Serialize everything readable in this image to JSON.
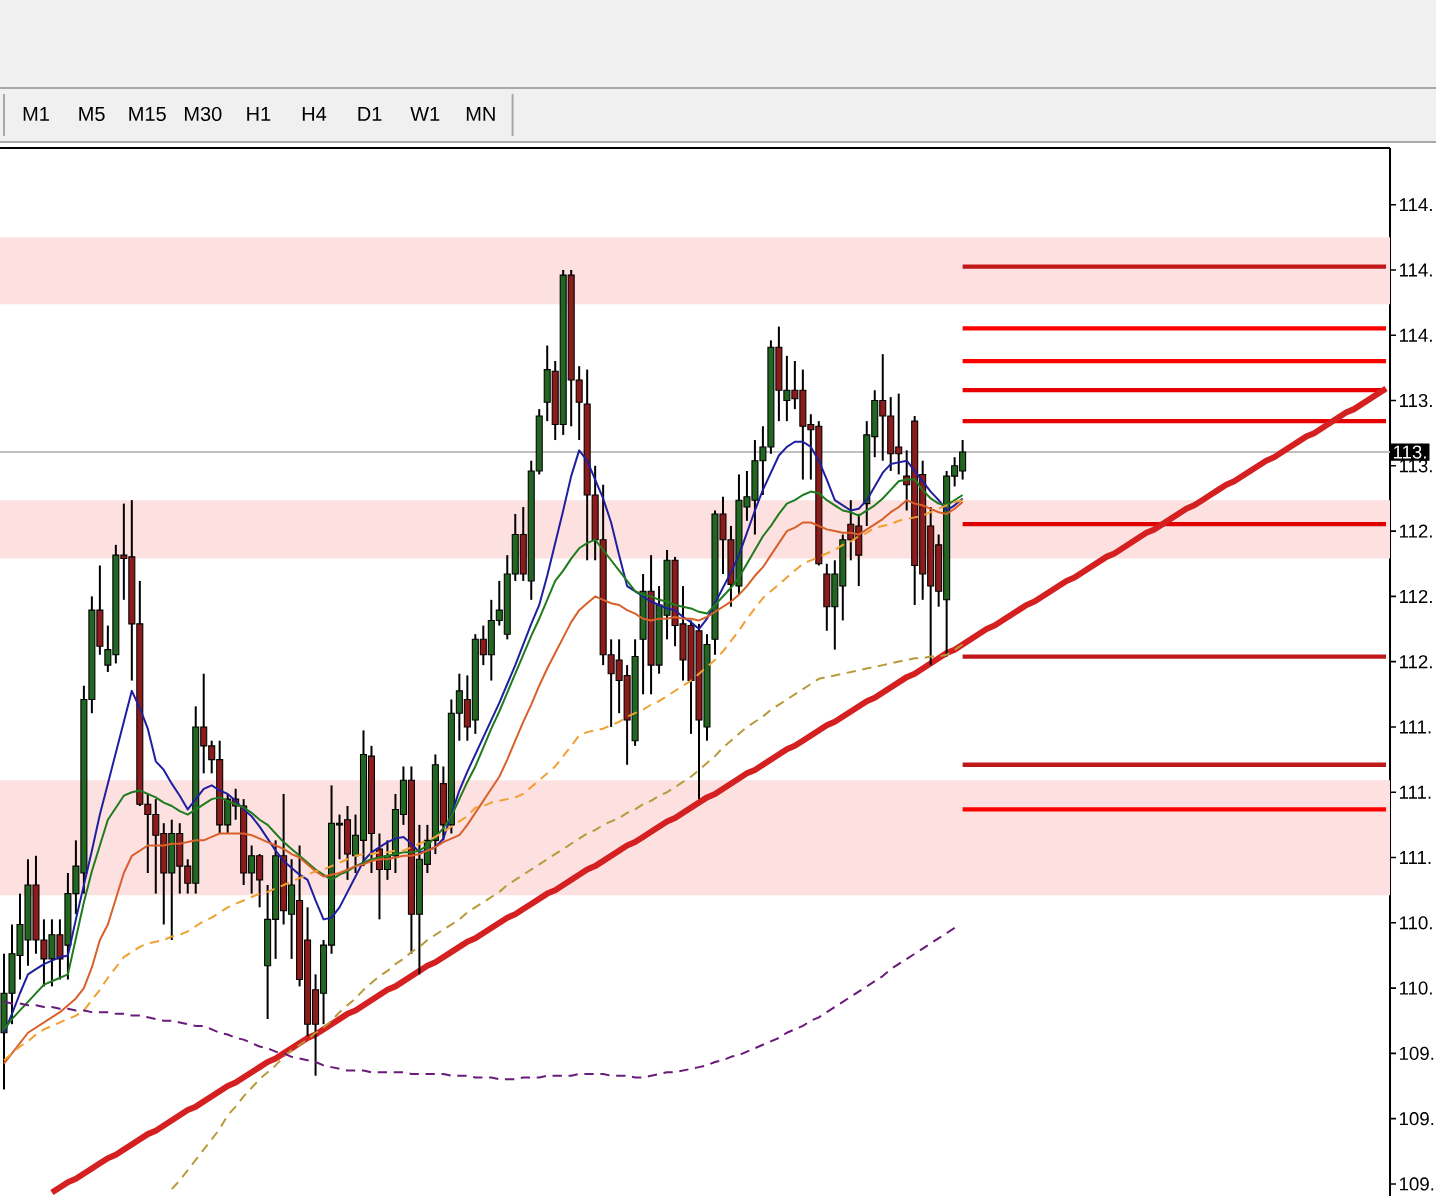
{
  "chart_data": {
    "type": "candlestick",
    "categories": [
      null,
      null,
      null,
      null,
      null,
      null,
      null,
      null,
      null,
      null,
      null,
      null,
      null,
      null,
      null,
      null,
      null,
      null,
      null,
      null,
      null,
      null,
      null,
      null,
      null,
      null,
      null,
      null,
      null,
      null,
      null,
      null,
      null,
      null,
      null,
      null,
      null,
      null,
      null,
      null,
      null,
      null,
      null,
      null,
      null,
      null,
      null,
      null,
      null,
      null,
      null,
      null,
      null,
      null,
      null,
      null,
      null,
      null,
      null,
      null,
      null,
      null,
      null,
      null,
      null,
      null,
      null,
      null,
      null,
      null,
      null,
      null,
      null,
      null,
      null,
      null,
      null,
      null,
      null,
      null,
      null,
      null,
      null,
      null,
      null,
      null,
      null,
      null,
      null,
      null,
      null,
      null,
      null,
      null,
      null,
      null,
      null,
      null,
      null,
      null,
      null,
      null,
      null,
      null,
      null,
      null,
      null,
      null,
      null,
      null,
      null,
      null,
      null,
      null,
      null,
      null,
      null,
      null,
      null,
      null,
      null,
      null,
      null,
      null,
      null,
      null,
      null,
      null,
      null,
      null,
      null,
      null,
      null,
      null,
      null,
      null,
      null,
      null,
      null,
      null,
      null,
      null,
      null,
      null,
      null,
      null,
      null,
      null,
      null,
      null,
      null,
      null,
      null,
      null,
      null,
      null,
      null,
      null,
      null,
      null,
      null,
      null,
      null,
      null,
      null,
      null,
      null,
      null,
      null,
      null,
      null,
      null,
      null,
      null
    ],
    "ohlc": [
      [
        109.53,
        109.99,
        109.2,
        109.76
      ],
      [
        109.76,
        110.16,
        109.58,
        109.99
      ],
      [
        109.98,
        110.34,
        109.84,
        110.16
      ],
      [
        110.07,
        110.54,
        109.92,
        110.39
      ],
      [
        110.39,
        110.56,
        109.99,
        110.07
      ],
      [
        110.07,
        110.19,
        109.8,
        109.96
      ],
      [
        109.96,
        110.19,
        109.8,
        110.1
      ],
      [
        110.1,
        110.19,
        109.84,
        109.96
      ],
      [
        110.04,
        110.46,
        109.84,
        110.34
      ],
      [
        110.34,
        110.65,
        110.22,
        110.5
      ],
      [
        110.46,
        111.55,
        110.34,
        111.47
      ],
      [
        111.47,
        112.07,
        111.39,
        111.99
      ],
      [
        111.99,
        112.25,
        111.73,
        111.78
      ],
      [
        111.67,
        111.9,
        111.63,
        111.76
      ],
      [
        111.73,
        112.37,
        111.68,
        112.31
      ],
      [
        112.31,
        112.61,
        112.05,
        112.29
      ],
      [
        112.3,
        112.63,
        111.58,
        111.91
      ],
      [
        111.91,
        112.16,
        110.85,
        110.86
      ],
      [
        110.86,
        110.92,
        110.46,
        110.8
      ],
      [
        110.8,
        110.89,
        110.34,
        110.68
      ],
      [
        110.69,
        110.75,
        110.16,
        110.46
      ],
      [
        110.46,
        110.77,
        110.07,
        110.69
      ],
      [
        110.69,
        110.75,
        110.34,
        110.5
      ],
      [
        110.5,
        110.54,
        110.34,
        110.4
      ],
      [
        110.4,
        111.43,
        110.34,
        111.31
      ],
      [
        111.31,
        111.62,
        111.04,
        111.2
      ],
      [
        111.2,
        111.23,
        111.04,
        111.12
      ],
      [
        111.12,
        111.23,
        110.69,
        110.74
      ],
      [
        110.74,
        110.92,
        110.69,
        110.89
      ],
      [
        110.89,
        110.95,
        110.77,
        110.85
      ],
      [
        110.85,
        110.89,
        110.39,
        110.46
      ],
      [
        110.46,
        110.62,
        110.34,
        110.56
      ],
      [
        110.56,
        110.57,
        110.26,
        110.42
      ],
      [
        109.92,
        110.39,
        109.61,
        110.19
      ],
      [
        110.19,
        110.65,
        109.96,
        110.56
      ],
      [
        110.56,
        110.92,
        110.16,
        110.24
      ],
      [
        110.22,
        110.54,
        109.96,
        110.39
      ],
      [
        110.3,
        110.62,
        109.8,
        109.84
      ],
      [
        110.07,
        110.26,
        109.51,
        109.58
      ],
      [
        109.78,
        109.87,
        109.28,
        109.58
      ],
      [
        109.76,
        110.07,
        109.58,
        110.04
      ],
      [
        110.04,
        110.97,
        109.99,
        110.75
      ],
      [
        110.74,
        110.8,
        110.54,
        110.75
      ],
      [
        110.77,
        110.85,
        110.42,
        110.57
      ],
      [
        110.56,
        110.8,
        110.46,
        110.68
      ],
      [
        110.65,
        111.29,
        110.5,
        111.15
      ],
      [
        111.14,
        111.2,
        110.46,
        110.69
      ],
      [
        110.6,
        110.69,
        110.19,
        110.48
      ],
      [
        110.48,
        110.65,
        110.42,
        110.56
      ],
      [
        110.56,
        110.92,
        110.46,
        110.83
      ],
      [
        110.8,
        111.08,
        110.74,
        111.0
      ],
      [
        111.0,
        111.08,
        109.99,
        110.22
      ],
      [
        110.22,
        110.74,
        109.87,
        110.54
      ],
      [
        110.51,
        110.74,
        110.46,
        110.65
      ],
      [
        110.65,
        111.15,
        110.57,
        111.09
      ],
      [
        110.98,
        111.08,
        110.65,
        110.74
      ],
      [
        110.74,
        111.47,
        110.69,
        111.39
      ],
      [
        111.39,
        111.62,
        111.23,
        111.52
      ],
      [
        111.47,
        111.61,
        111.23,
        111.31
      ],
      [
        111.35,
        111.85,
        111.27,
        111.82
      ],
      [
        111.82,
        111.9,
        111.67,
        111.73
      ],
      [
        111.73,
        112.05,
        111.58,
        111.93
      ],
      [
        111.93,
        112.16,
        111.9,
        111.99
      ],
      [
        111.85,
        112.31,
        111.82,
        112.2
      ],
      [
        112.2,
        112.55,
        112.16,
        112.43
      ],
      [
        112.43,
        112.59,
        112.16,
        112.2
      ],
      [
        112.16,
        112.86,
        112.05,
        112.8
      ],
      [
        112.8,
        113.16,
        112.78,
        113.12
      ],
      [
        113.2,
        113.53,
        113.09,
        113.39
      ],
      [
        113.38,
        113.44,
        112.98,
        113.07
      ],
      [
        113.07,
        113.97,
        113.01,
        113.94
      ],
      [
        113.94,
        113.97,
        113.06,
        113.33
      ],
      [
        113.33,
        113.41,
        112.98,
        113.2
      ],
      [
        113.19,
        113.39,
        112.28,
        112.66
      ],
      [
        112.66,
        112.83,
        112.28,
        112.4
      ],
      [
        112.4,
        112.72,
        111.67,
        111.73
      ],
      [
        111.73,
        111.82,
        111.31,
        111.62
      ],
      [
        111.7,
        111.82,
        111.39,
        111.58
      ],
      [
        111.61,
        111.67,
        111.09,
        111.35
      ],
      [
        111.23,
        111.82,
        111.2,
        111.72
      ],
      [
        111.82,
        112.2,
        111.5,
        112.1
      ],
      [
        112.1,
        112.31,
        111.5,
        111.67
      ],
      [
        111.67,
        112.13,
        111.62,
        112.02
      ],
      [
        111.96,
        112.34,
        111.82,
        112.28
      ],
      [
        112.28,
        112.3,
        111.78,
        111.9
      ],
      [
        111.91,
        112.13,
        111.58,
        111.7
      ],
      [
        111.9,
        111.93,
        111.27,
        111.58
      ],
      [
        111.87,
        111.91,
        110.89,
        111.35
      ],
      [
        111.31,
        111.85,
        111.23,
        111.79
      ],
      [
        111.82,
        112.57,
        111.73,
        112.55
      ],
      [
        112.55,
        112.65,
        112.2,
        112.4
      ],
      [
        112.4,
        112.48,
        112.01,
        112.14
      ],
      [
        112.13,
        112.78,
        112.08,
        112.63
      ],
      [
        112.59,
        112.8,
        112.51,
        112.65
      ],
      [
        112.63,
        112.98,
        112.43,
        112.86
      ],
      [
        112.86,
        113.06,
        112.66,
        112.94
      ],
      [
        112.94,
        113.56,
        112.9,
        113.52
      ],
      [
        113.52,
        113.64,
        113.09,
        113.27
      ],
      [
        113.21,
        113.47,
        113.09,
        113.27
      ],
      [
        113.27,
        113.44,
        113.16,
        113.22
      ],
      [
        113.27,
        113.39,
        112.75,
        113.06
      ],
      [
        113.07,
        113.13,
        112.75,
        113.04
      ],
      [
        113.06,
        113.09,
        112.25,
        112.26
      ],
      [
        112.2,
        112.26,
        111.87,
        112.01
      ],
      [
        112.01,
        112.28,
        111.76,
        112.2
      ],
      [
        112.13,
        112.43,
        111.93,
        112.4
      ],
      [
        112.49,
        112.63,
        112.28,
        112.4
      ],
      [
        112.48,
        112.55,
        112.13,
        112.31
      ],
      [
        112.61,
        113.09,
        112.48,
        113.01
      ],
      [
        113.0,
        113.27,
        112.88,
        113.21
      ],
      [
        113.21,
        113.48,
        112.86,
        113.12
      ],
      [
        113.12,
        113.23,
        112.8,
        112.9
      ],
      [
        112.94,
        113.25,
        112.78,
        112.9
      ],
      [
        112.77,
        112.92,
        112.57,
        112.72
      ],
      [
        113.09,
        113.12,
        112.02,
        112.25
      ],
      [
        112.78,
        112.86,
        112.05,
        112.2
      ],
      [
        112.48,
        112.59,
        111.67,
        112.13
      ],
      [
        112.37,
        112.43,
        112.01,
        112.1
      ],
      [
        112.05,
        112.8,
        111.72,
        112.77
      ],
      [
        112.77,
        112.88,
        112.71,
        112.83
      ],
      [
        112.8,
        112.98,
        112.75,
        112.91
      ],
      null,
      null,
      null,
      null,
      null,
      null,
      null,
      null,
      null,
      null,
      null,
      null,
      null,
      null,
      null,
      null,
      null,
      null,
      null,
      null,
      null,
      null,
      null,
      null,
      null,
      null,
      null,
      null,
      null,
      null,
      null,
      null,
      null,
      null,
      null,
      null,
      null,
      null,
      null,
      null,
      null,
      null,
      null,
      null,
      null,
      null,
      null,
      null,
      null,
      null,
      null,
      null,
      null
    ],
    "colors": [
      "#226622",
      "#226622",
      "#226622",
      "#226622",
      "#8c1c1c",
      "#8c1c1c",
      "#226622",
      "#8c1c1c",
      "#226622",
      "#226622",
      "#226622",
      "#226622",
      "#8c1c1c",
      "#226622",
      "#226622",
      "#8c1c1c",
      "#8c1c1c",
      "#8c1c1c",
      "#8c1c1c",
      "#8c1c1c",
      "#8c1c1c",
      "#226622",
      "#8c1c1c",
      "#8c1c1c",
      "#226622",
      "#8c1c1c",
      "#8c1c1c",
      "#8c1c1c",
      "#226622",
      "#8c1c1c",
      "#8c1c1c",
      "#226622",
      "#8c1c1c",
      "#226622",
      "#226622",
      "#8c1c1c",
      "#226622",
      "#8c1c1c",
      "#8c1c1c",
      "#8c1c1c",
      "#226622",
      "#226622",
      "#226622",
      "#8c1c1c",
      "#226622",
      "#226622",
      "#8c1c1c",
      "#8c1c1c",
      "#226622",
      "#226622",
      "#226622",
      "#8c1c1c",
      "#226622",
      "#226622",
      "#226622",
      "#8c1c1c",
      "#226622",
      "#226622",
      "#8c1c1c",
      "#226622",
      "#8c1c1c",
      "#226622",
      "#226622",
      "#226622",
      "#226622",
      "#8c1c1c",
      "#226622",
      "#226622",
      "#226622",
      "#8c1c1c",
      "#226622",
      "#8c1c1c",
      "#8c1c1c",
      "#8c1c1c",
      "#8c1c1c",
      "#8c1c1c",
      "#8c1c1c",
      "#8c1c1c",
      "#8c1c1c",
      "#226622",
      "#226622",
      "#8c1c1c",
      "#226622",
      "#226622",
      "#8c1c1c",
      "#8c1c1c",
      "#8c1c1c",
      "#8c1c1c",
      "#226622",
      "#226622",
      "#8c1c1c",
      "#8c1c1c",
      "#226622",
      "#226622",
      "#226622",
      "#226622",
      "#226622",
      "#8c1c1c",
      "#226622",
      "#8c1c1c",
      "#8c1c1c",
      "#8c1c1c",
      "#8c1c1c",
      "#8c1c1c",
      "#226622",
      "#226622",
      "#8c1c1c",
      "#8c1c1c",
      "#226622",
      "#226622",
      "#8c1c1c",
      "#8c1c1c",
      "#8c1c1c",
      "#8c1c1c",
      "#8c1c1c",
      "#8c1c1c",
      "#8c1c1c",
      "#8c1c1c",
      "#226622",
      "#226622",
      "#226622",
      null,
      null,
      null,
      null,
      null,
      null,
      null,
      null,
      null,
      null,
      null,
      null,
      null,
      null,
      null,
      null,
      null,
      null,
      null,
      null,
      null,
      null,
      null,
      null,
      null,
      null,
      null,
      null,
      null,
      null,
      null,
      null,
      null,
      null,
      null,
      null,
      null,
      null,
      null,
      null,
      null,
      null,
      null,
      null,
      null,
      null,
      null,
      null,
      null,
      null,
      null,
      null,
      null
    ],
    "series": [
      {
        "type": "line",
        "color": "#1f1fa0",
        "line_style": "solid",
        "values": [
          109.53,
          109.64,
          109.76,
          109.87,
          109.9,
          109.93,
          109.95,
          109.97,
          109.98,
          110.19,
          110.39,
          110.59,
          110.8,
          110.98,
          111.16,
          111.34,
          111.52,
          111.42,
          111.3,
          111.11,
          111.06,
          110.98,
          110.91,
          110.83,
          110.89,
          110.95,
          110.97,
          110.94,
          110.92,
          110.88,
          110.83,
          110.79,
          110.73,
          110.66,
          110.59,
          110.53,
          110.49,
          110.45,
          110.42,
          110.3,
          110.19,
          110.2,
          110.26,
          110.35,
          110.44,
          110.53,
          110.58,
          110.61,
          110.64,
          110.66,
          110.67,
          110.63,
          110.58,
          110.59,
          110.61,
          110.66,
          110.8,
          110.94,
          111.05,
          111.15,
          111.25,
          111.35,
          111.45,
          111.56,
          111.67,
          111.79,
          111.91,
          112.02,
          112.19,
          112.38,
          112.57,
          112.77,
          112.92,
          112.86,
          112.75,
          112.64,
          112.5,
          112.31,
          112.13,
          112.1,
          112.07,
          112.04,
          112.02,
          112.0,
          111.99,
          111.95,
          111.92,
          111.88,
          111.94,
          112.03,
          112.12,
          112.21,
          112.31,
          112.44,
          112.57,
          112.69,
          112.79,
          112.89,
          112.94,
          112.97,
          112.97,
          112.94,
          112.86,
          112.75,
          112.63,
          112.6,
          112.57,
          112.58,
          112.63,
          112.71,
          112.79,
          112.84,
          112.85,
          112.86,
          112.8,
          112.74,
          112.68,
          112.63,
          112.57,
          112.6,
          112.64,
          null,
          null,
          null,
          null,
          null,
          null,
          null,
          null,
          null,
          null,
          null,
          null,
          null,
          null,
          null,
          null,
          null,
          null,
          null,
          null,
          null,
          null,
          null,
          null,
          null,
          null,
          null,
          null,
          null,
          null,
          null,
          null,
          null,
          null,
          null,
          null,
          null,
          null,
          null,
          null,
          null,
          null,
          null,
          null,
          null,
          null,
          null,
          null,
          null,
          null,
          null,
          null,
          null
        ]
      },
      {
        "type": "line",
        "color": "#1e7b1e",
        "line_style": "solid",
        "values": [
          109.55,
          109.61,
          109.66,
          109.71,
          109.76,
          109.81,
          109.83,
          109.85,
          109.87,
          110.08,
          110.29,
          110.47,
          110.62,
          110.77,
          110.84,
          110.91,
          110.93,
          110.94,
          110.92,
          110.9,
          110.87,
          110.85,
          110.82,
          110.8,
          110.83,
          110.86,
          110.89,
          110.9,
          110.88,
          110.86,
          110.84,
          110.81,
          110.77,
          110.74,
          110.69,
          110.64,
          110.6,
          110.56,
          110.52,
          110.48,
          110.45,
          110.42,
          110.45,
          110.47,
          110.5,
          110.52,
          110.54,
          110.55,
          110.56,
          110.57,
          110.58,
          110.58,
          110.59,
          110.62,
          110.67,
          110.72,
          110.79,
          110.89,
          110.99,
          111.08,
          111.19,
          111.3,
          111.4,
          111.51,
          111.62,
          111.73,
          111.84,
          111.94,
          112.05,
          112.16,
          112.22,
          112.29,
          112.35,
          112.38,
          112.4,
          112.34,
          112.28,
          112.22,
          112.16,
          112.1,
          112.08,
          112.07,
          112.05,
          112.04,
          112.02,
          112.01,
          112.0,
          111.98,
          111.97,
          112.02,
          112.07,
          112.12,
          112.18,
          112.26,
          112.34,
          112.42,
          112.48,
          112.55,
          112.61,
          112.63,
          112.66,
          112.68,
          112.67,
          112.63,
          112.6,
          112.57,
          112.56,
          112.54,
          112.57,
          112.6,
          112.64,
          112.69,
          112.74,
          112.75,
          112.75,
          112.69,
          112.64,
          112.61,
          112.6,
          112.63,
          112.66,
          null,
          null,
          null,
          null,
          null,
          null,
          null,
          null,
          null,
          null,
          null,
          null,
          null,
          null,
          null,
          null,
          null,
          null,
          null,
          null,
          null,
          null,
          null,
          null,
          null,
          null,
          null,
          null,
          null,
          null,
          null,
          null,
          null,
          null,
          null,
          null,
          null,
          null,
          null,
          null,
          null,
          null,
          null,
          null,
          null,
          null,
          null,
          null,
          null,
          null,
          null,
          null,
          null
        ]
      },
      {
        "type": "line",
        "color": "#d8602a",
        "line_style": "solid",
        "values": [
          109.35,
          109.41,
          109.47,
          109.53,
          109.56,
          109.59,
          109.62,
          109.65,
          109.69,
          109.73,
          109.79,
          109.91,
          110.07,
          110.16,
          110.31,
          110.46,
          110.56,
          110.59,
          110.62,
          110.62,
          110.62,
          110.63,
          110.63,
          110.64,
          110.65,
          110.65,
          110.67,
          110.69,
          110.69,
          110.69,
          110.69,
          110.68,
          110.66,
          110.64,
          110.62,
          110.6,
          110.57,
          110.55,
          110.51,
          110.47,
          110.44,
          110.45,
          110.46,
          110.48,
          110.5,
          110.51,
          110.53,
          110.54,
          110.54,
          110.55,
          110.56,
          110.56,
          110.57,
          110.59,
          110.61,
          110.64,
          110.66,
          110.68,
          110.74,
          110.81,
          110.88,
          110.95,
          111.02,
          111.12,
          111.23,
          111.34,
          111.44,
          111.55,
          111.65,
          111.74,
          111.83,
          111.92,
          111.99,
          112.03,
          112.07,
          112.05,
          112.03,
          112.02,
          111.99,
          111.97,
          111.94,
          111.93,
          111.94,
          111.94,
          111.95,
          111.94,
          111.94,
          111.93,
          111.95,
          111.98,
          112.01,
          112.04,
          112.08,
          112.13,
          112.19,
          112.24,
          112.31,
          112.38,
          112.45,
          112.47,
          112.5,
          112.5,
          112.48,
          112.46,
          112.45,
          112.44,
          112.44,
          112.43,
          112.46,
          112.49,
          112.52,
          112.56,
          112.59,
          112.63,
          112.61,
          112.6,
          112.58,
          112.56,
          112.55,
          112.58,
          112.62,
          null,
          null,
          null,
          null,
          null,
          null,
          null,
          null,
          null,
          null,
          null,
          null,
          null,
          null,
          null,
          null,
          null,
          null,
          null,
          null,
          null,
          null,
          null,
          null,
          null,
          null,
          null,
          null,
          null,
          null,
          null,
          null,
          null,
          null,
          null,
          null,
          null,
          null,
          null,
          null,
          null,
          null,
          null,
          null,
          null,
          null,
          null,
          null,
          null,
          null,
          null,
          null,
          null
        ]
      },
      {
        "type": "line",
        "color": "#f0a030",
        "line_style": "dashed",
        "values": [
          109.37,
          109.41,
          109.45,
          109.48,
          109.52,
          109.55,
          109.57,
          109.59,
          109.61,
          109.63,
          109.66,
          109.72,
          109.78,
          109.85,
          109.91,
          109.97,
          110.0,
          110.03,
          110.05,
          110.06,
          110.07,
          110.09,
          110.1,
          110.12,
          110.15,
          110.18,
          110.2,
          110.23,
          110.26,
          110.28,
          110.3,
          110.32,
          110.34,
          110.35,
          110.37,
          110.39,
          110.41,
          110.43,
          110.45,
          110.47,
          110.48,
          110.5,
          110.52,
          110.54,
          110.56,
          110.57,
          110.57,
          110.58,
          110.58,
          110.59,
          110.59,
          110.61,
          110.63,
          110.65,
          110.67,
          110.7,
          110.73,
          110.76,
          110.79,
          110.84,
          110.85,
          110.87,
          110.88,
          110.89,
          110.9,
          110.92,
          110.96,
          111.0,
          111.04,
          111.08,
          111.14,
          111.2,
          111.26,
          111.28,
          111.29,
          111.3,
          111.32,
          111.34,
          111.37,
          111.39,
          111.41,
          111.44,
          111.46,
          111.49,
          111.52,
          111.55,
          111.58,
          111.62,
          111.66,
          111.7,
          111.75,
          111.81,
          111.87,
          111.94,
          112.0,
          112.06,
          112.1,
          112.14,
          112.18,
          112.22,
          112.26,
          112.28,
          112.3,
          112.32,
          112.34,
          112.37,
          112.39,
          112.42,
          112.44,
          112.47,
          112.48,
          112.49,
          112.51,
          112.52,
          112.53,
          112.54,
          112.56,
          112.58,
          112.6,
          112.62,
          112.63,
          null,
          null,
          null,
          null,
          null,
          null,
          null,
          null,
          null,
          null,
          null,
          null,
          null,
          null,
          null,
          null,
          null,
          null,
          null,
          null,
          null,
          null,
          null,
          null,
          null,
          null,
          null,
          null,
          null,
          null,
          null,
          null,
          null,
          null,
          null,
          null,
          null,
          null,
          null,
          null,
          null,
          null,
          null,
          null,
          null,
          null,
          null,
          null,
          null,
          null,
          null,
          null,
          null
        ]
      },
      {
        "type": "line",
        "color": "#b89a3a",
        "line_style": "dashed",
        "values": [
          null,
          null,
          null,
          null,
          null,
          null,
          null,
          null,
          null,
          null,
          null,
          null,
          null,
          null,
          null,
          null,
          null,
          null,
          null,
          null,
          null,
          108.62,
          108.67,
          108.73,
          108.79,
          108.85,
          108.91,
          108.97,
          109.05,
          109.1,
          109.16,
          109.21,
          109.26,
          109.3,
          109.34,
          109.39,
          109.43,
          109.46,
          109.49,
          109.53,
          109.56,
          109.6,
          109.65,
          109.69,
          109.73,
          109.78,
          109.82,
          109.86,
          109.89,
          109.93,
          109.96,
          110.0,
          110.03,
          110.07,
          110.1,
          110.13,
          110.16,
          110.19,
          110.23,
          110.26,
          110.29,
          110.32,
          110.35,
          110.39,
          110.42,
          110.45,
          110.48,
          110.51,
          110.54,
          110.57,
          110.6,
          110.63,
          110.66,
          110.69,
          110.71,
          110.74,
          110.76,
          110.78,
          110.81,
          110.83,
          110.86,
          110.88,
          110.91,
          110.93,
          110.96,
          110.99,
          111.02,
          111.06,
          111.1,
          111.14,
          111.19,
          111.23,
          111.27,
          111.31,
          111.34,
          111.37,
          111.41,
          111.44,
          111.47,
          111.5,
          111.53,
          111.56,
          111.59,
          111.6,
          111.61,
          111.62,
          111.63,
          111.64,
          111.65,
          111.66,
          111.67,
          111.68,
          111.69,
          111.7,
          111.71,
          111.71,
          111.72,
          111.72,
          111.73,
          111.76,
          111.79,
          null,
          null,
          null,
          null,
          null,
          null,
          null,
          null,
          null,
          null,
          null,
          null,
          null,
          null,
          null,
          null,
          null,
          null,
          null,
          null,
          null,
          null,
          null,
          null,
          null,
          null,
          null,
          null,
          null,
          null,
          null,
          null,
          null,
          null,
          null,
          null,
          null,
          null,
          null,
          null,
          null,
          null,
          null,
          null,
          null,
          null,
          null,
          null,
          null,
          null,
          null,
          null,
          null
        ]
      },
      {
        "type": "line",
        "color": "#6a1a7a",
        "line_style": "dashed",
        "values": [
          109.71,
          109.7,
          109.7,
          109.69,
          109.69,
          109.68,
          109.68,
          109.67,
          109.67,
          109.66,
          109.66,
          109.65,
          109.65,
          109.65,
          109.64,
          109.64,
          109.63,
          109.63,
          109.62,
          109.61,
          109.6,
          109.6,
          109.59,
          109.58,
          109.57,
          109.57,
          109.55,
          109.53,
          109.52,
          109.5,
          109.49,
          109.47,
          109.45,
          109.44,
          109.42,
          109.41,
          109.39,
          109.38,
          109.37,
          109.36,
          109.34,
          109.33,
          109.32,
          109.31,
          109.31,
          109.31,
          109.3,
          109.3,
          109.3,
          109.3,
          109.3,
          109.29,
          109.29,
          109.29,
          109.29,
          109.29,
          109.28,
          109.28,
          109.28,
          109.27,
          109.27,
          109.27,
          109.26,
          109.26,
          109.26,
          109.27,
          109.27,
          109.27,
          109.28,
          109.28,
          109.28,
          109.28,
          109.29,
          109.29,
          109.29,
          109.29,
          109.28,
          109.28,
          109.28,
          109.27,
          109.27,
          109.28,
          109.29,
          109.3,
          109.3,
          109.31,
          109.32,
          109.33,
          109.34,
          109.36,
          109.37,
          109.39,
          109.4,
          109.42,
          109.44,
          109.46,
          109.48,
          109.5,
          109.53,
          109.55,
          109.57,
          109.6,
          109.62,
          109.65,
          109.68,
          109.71,
          109.74,
          109.77,
          109.8,
          109.83,
          109.86,
          109.9,
          109.93,
          109.96,
          109.99,
          110.02,
          110.05,
          110.08,
          110.11,
          110.14,
          null,
          null,
          null,
          null,
          null,
          null,
          null,
          null,
          null,
          null,
          null,
          null,
          null,
          null,
          null,
          null,
          null,
          null,
          null,
          null,
          null,
          null,
          null,
          null,
          null,
          null,
          null,
          null,
          null,
          null,
          null,
          null,
          null,
          null,
          null,
          null,
          null,
          null,
          null,
          null,
          null,
          null,
          null,
          null,
          null,
          null,
          null,
          null,
          null,
          null,
          null,
          null,
          null,
          null
        ]
      },
      {
        "type": "line",
        "color": "#d42020",
        "line_style": "solid",
        "values": [
          null,
          null,
          null,
          null,
          null,
          null,
          108.6,
          108.63,
          108.66,
          108.68,
          108.71,
          108.74,
          108.77,
          108.8,
          108.82,
          108.85,
          108.88,
          108.91,
          108.94,
          108.96,
          108.99,
          109.02,
          109.05,
          109.08,
          109.1,
          109.13,
          109.16,
          109.19,
          109.22,
          109.24,
          109.27,
          109.3,
          109.33,
          109.36,
          109.38,
          109.41,
          109.44,
          109.47,
          109.5,
          109.52,
          109.55,
          109.58,
          109.61,
          109.64,
          109.66,
          109.69,
          109.72,
          109.75,
          109.78,
          109.8,
          109.83,
          109.86,
          109.89,
          109.92,
          109.94,
          109.97,
          110.0,
          110.03,
          110.06,
          110.08,
          110.11,
          110.14,
          110.17,
          110.2,
          110.22,
          110.25,
          110.28,
          110.31,
          110.34,
          110.36,
          110.39,
          110.42,
          110.45,
          110.48,
          110.5,
          110.53,
          110.56,
          110.59,
          110.62,
          110.64,
          110.67,
          110.7,
          110.73,
          110.76,
          110.78,
          110.81,
          110.84,
          110.87,
          110.9,
          110.92,
          110.95,
          110.98,
          111.01,
          111.04,
          111.06,
          111.09,
          111.12,
          111.15,
          111.18,
          111.2,
          111.23,
          111.26,
          111.29,
          111.32,
          111.34,
          111.37,
          111.4,
          111.43,
          111.46,
          111.48,
          111.51,
          111.54,
          111.57,
          111.6,
          111.62,
          111.65,
          111.68,
          111.71,
          111.74,
          111.76,
          111.79,
          111.82,
          111.85,
          111.88,
          111.9,
          111.93,
          111.96,
          111.99,
          112.02,
          112.04,
          112.07,
          112.1,
          112.13,
          112.16,
          112.18,
          112.21,
          112.24,
          112.27,
          112.3,
          112.32,
          112.35,
          112.38,
          112.41,
          112.44,
          112.46,
          112.49,
          112.52,
          112.55,
          112.58,
          112.6,
          112.63,
          112.66,
          112.69,
          112.72,
          112.74,
          112.77,
          112.8,
          112.83,
          112.86,
          112.88,
          112.91,
          112.94,
          112.97,
          113.0,
          113.02,
          113.05,
          113.08,
          113.11,
          113.14,
          113.16,
          113.19,
          113.22,
          113.25,
          113.28
        ]
      }
    ],
    "ylim": [
      108.58,
      114.68
    ],
    "yticks": [
      {
        "value": 114.35,
        "label": "114."
      },
      {
        "value": 113.97,
        "label": "114."
      },
      {
        "value": 113.59,
        "label": "114."
      },
      {
        "value": 113.21,
        "label": "113."
      },
      {
        "value": 112.83,
        "label": "113."
      },
      {
        "value": 112.45,
        "label": "112."
      },
      {
        "value": 112.07,
        "label": "112."
      },
      {
        "value": 111.69,
        "label": "112."
      },
      {
        "value": 111.31,
        "label": "111."
      },
      {
        "value": 110.93,
        "label": "111."
      },
      {
        "value": 110.55,
        "label": "111."
      },
      {
        "value": 110.17,
        "label": "110."
      },
      {
        "value": 109.79,
        "label": "110."
      },
      {
        "value": 109.41,
        "label": "109."
      },
      {
        "value": 109.03,
        "label": "109."
      },
      {
        "value": 108.65,
        "label": "109."
      }
    ],
    "tick_labels": "y",
    "bands": [
      {
        "axis": "y",
        "from": 113.77,
        "to": 114.16,
        "color": "#fde0e0"
      },
      {
        "axis": "y",
        "from": 112.29,
        "to": 112.63,
        "color": "#fde0e0"
      },
      {
        "axis": "y",
        "from": 110.33,
        "to": 111.0,
        "color": "#fde0e0"
      }
    ],
    "ref_lines": [
      {
        "axis": "y",
        "value": 112.91,
        "label": "113.",
        "color": "#c0c0c0"
      },
      {
        "axis": "y",
        "value": 113.99,
        "color": "#c01818"
      },
      {
        "axis": "y",
        "value": 113.63,
        "color": "#ff0000"
      },
      {
        "axis": "y",
        "value": 113.44,
        "color": "#ff0000"
      },
      {
        "axis": "y",
        "value": 113.27,
        "color": "#e80000"
      },
      {
        "axis": "y",
        "value": 113.09,
        "color": "#e80000"
      },
      {
        "axis": "y",
        "value": 112.49,
        "color": "#e00000"
      },
      {
        "axis": "y",
        "value": 111.72,
        "color": "#c01818"
      },
      {
        "axis": "y",
        "value": 111.09,
        "color": "#c01818"
      },
      {
        "axis": "y",
        "value": 110.83,
        "color": "#ff0000"
      }
    ],
    "annotations": [
      "M1",
      "M5",
      "M15",
      "M30",
      "H1",
      "H4",
      "D1",
      "W1",
      "MN"
    ]
  }
}
